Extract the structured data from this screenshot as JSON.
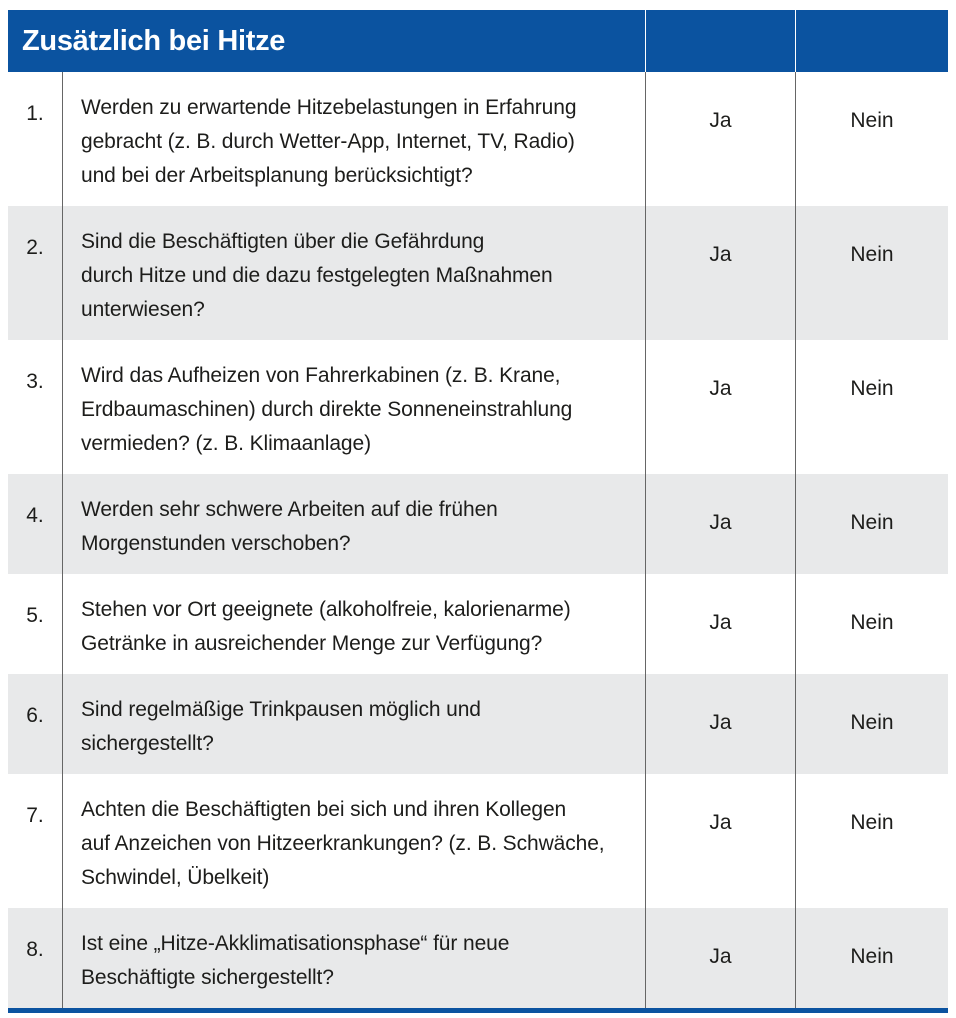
{
  "colors": {
    "accent": "#0b53a0",
    "row-alt": "#e8e9ea",
    "divider": "#666666",
    "text": "#1d1d1b",
    "header-text": "#ffffff"
  },
  "header": {
    "title": "Zusätzlich bei Hitze"
  },
  "answers": {
    "yes": "Ja",
    "no": "Nein"
  },
  "rows": [
    {
      "num": "1.",
      "lines": [
        "Werden zu erwartende Hitzebelastungen in Erfahrung",
        "gebracht (z. B. durch Wetter-App, Internet, TV, Radio)",
        "und bei der Arbeitsplanung berücksichtigt?"
      ]
    },
    {
      "num": "2.",
      "lines": [
        "Sind die Beschäftigten über die Gefährdung",
        "durch Hitze und die dazu festgelegten Maßnahmen",
        "unterwiesen?"
      ]
    },
    {
      "num": "3.",
      "lines": [
        "Wird das Aufheizen von Fahrerkabinen (z. B. Krane,",
        "Erdbaumaschinen) durch direkte Sonneneinstrahlung",
        "vermieden? (z. B. Klimaanlage)"
      ]
    },
    {
      "num": "4.",
      "lines": [
        "Werden sehr schwere Arbeiten auf die frühen",
        "Morgenstunden verschoben?"
      ]
    },
    {
      "num": "5.",
      "lines": [
        "Stehen vor Ort geeignete (alkoholfreie, kalorienarme)",
        "Getränke in ausreichender Menge zur Verfügung?"
      ]
    },
    {
      "num": "6.",
      "lines": [
        "Sind regelmäßige Trinkpausen möglich und",
        "sichergestellt?"
      ]
    },
    {
      "num": "7.",
      "lines": [
        "Achten die Beschäftigten bei sich und ihren Kollegen",
        "auf Anzeichen von Hitzeerkrankungen? (z. B. Schwäche,",
        "Schwindel, Übelkeit)"
      ]
    },
    {
      "num": "8.",
      "lines": [
        "Ist eine „Hitze-Akklimatisationsphase“ für neue",
        "Beschäftigte sichergestellt?"
      ]
    }
  ]
}
